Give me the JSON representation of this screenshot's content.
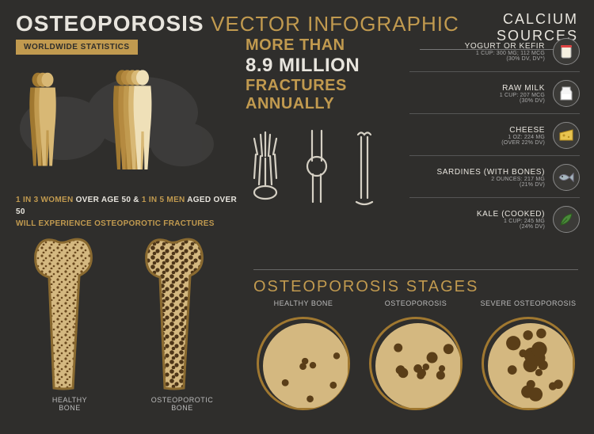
{
  "colors": {
    "background": "#2f2e2c",
    "accent": "#c19a4f",
    "accent_dark": "#a07830",
    "text": "#e8e5de",
    "muted": "#aaaaaa",
    "divider": "#666666"
  },
  "title": {
    "main": "OSTEOPOROSIS",
    "sub": "VECTOR INFOGRAPHIC"
  },
  "badge": "WORLDWIDE STATISTICS",
  "stat": {
    "p1_hl": "1 IN 3 WOMEN",
    "p1_wt": " OVER AGE 50 & ",
    "p2_hl": "1 IN 5 MEN",
    "p2_wt": " AGED OVER 50",
    "line2": "WILL EXPERIENCE OSTEOPOROTIC FRACTURES"
  },
  "fractures": {
    "l1": "MORE THAN",
    "l2": "8.9 MILLION",
    "l3": "FRACTURES",
    "l4": "ANNUALLY"
  },
  "calcium_header": "CALCIUM SOURCES",
  "calcium": [
    {
      "name": "YOGURT OR KEFIR",
      "detail1": "1 CUP: 300 MG; 112 MCG",
      "detail2": "(30% DV, DV*)",
      "icon": "yogurt"
    },
    {
      "name": "RAW MILK",
      "detail1": "1 CUP: 207 MCG",
      "detail2": "(30% DV)",
      "icon": "milk"
    },
    {
      "name": "CHEESE",
      "detail1": "1 OZ: 224 MG",
      "detail2": "(OVER 22% DV)",
      "icon": "cheese"
    },
    {
      "name": "SARDINES (WITH BONES)",
      "detail1": "2 OUNCES: 217 MG",
      "detail2": "(21% DV)",
      "icon": "fish"
    },
    {
      "name": "KALE (COOKED)",
      "detail1": "1 CUP: 245 MG",
      "detail2": "(24% DV)",
      "icon": "leaf"
    }
  ],
  "bones": {
    "left": "HEALTHY\nBONE",
    "right": "OSTEOPOROTIC\nBONE"
  },
  "stages_header": "OSTEOPOROSIS STAGES",
  "stages": [
    {
      "label": "HEALTHY BONE",
      "density": 0.95
    },
    {
      "label": "OSTEOPOROSIS",
      "density": 0.65
    },
    {
      "label": "SEVERE OSTEOPOROSIS",
      "density": 0.35
    }
  ],
  "figures": {
    "women_count": 3,
    "men_count": 5,
    "colors": [
      "#a07830",
      "#c19a4f",
      "#d8b875",
      "#e5cc95",
      "#efe0b8"
    ]
  }
}
